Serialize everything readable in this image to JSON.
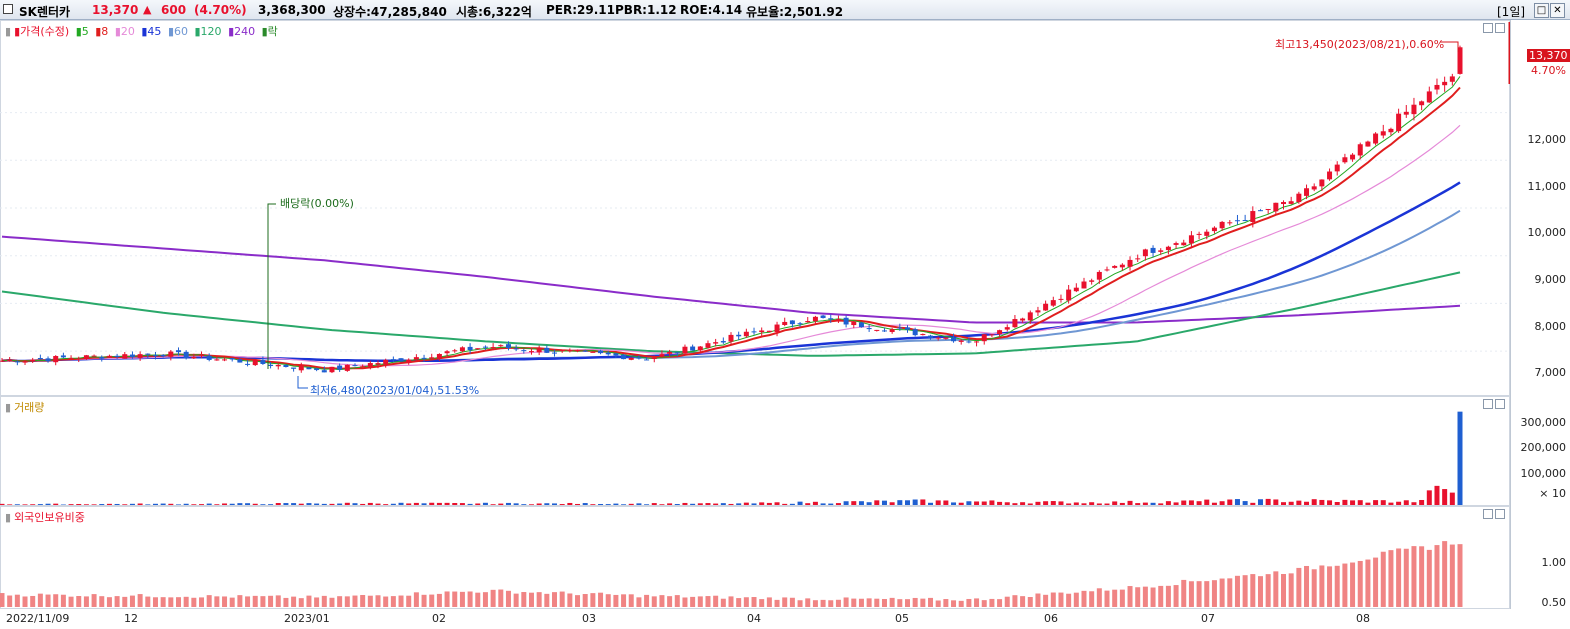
{
  "titlebar": {
    "name": "SK렌터카",
    "price": "13,370",
    "change_arrow": "▲",
    "change": "600",
    "change_pct": "(4.70%)",
    "volume": "3,368,300",
    "shares": "상장수:47,285,840",
    "mktcap": "시총:6,322억",
    "per": "PER:29.11",
    "pbr": "PBR:1.12",
    "roe": "ROE:4.14",
    "float": "유보율:2,501.92",
    "period": "[1일]",
    "btn_max": "□",
    "btn_close": "✕"
  },
  "colors": {
    "up": "#e8112d",
    "down": "#1f5fd1",
    "ma5": "#22a822",
    "ma8": "#e01e1e",
    "ma20": "#e58ad8",
    "ma45": "#1a34d6",
    "ma60": "#6f97d3",
    "ma120": "#2aa86a",
    "ma240": "#8a2cc9",
    "foreign": "#f08484"
  },
  "price_panel": {
    "legend": [
      {
        "text": "가격(수정)",
        "color": "#e8112d"
      },
      {
        "text": "5",
        "color": "#22a822"
      },
      {
        "text": "8",
        "color": "#e01e1e"
      },
      {
        "text": "20",
        "color": "#e58ad8"
      },
      {
        "text": "45",
        "color": "#1a34d6"
      },
      {
        "text": "60",
        "color": "#6f97d3"
      },
      {
        "text": "120",
        "color": "#2aa86a"
      },
      {
        "text": "240",
        "color": "#8a2cc9"
      },
      {
        "text": "락",
        "color": "#2a8a2a"
      }
    ],
    "y_ticks": [
      "12,000",
      "11,000",
      "10,000",
      "9,000",
      "8,000",
      "7,000"
    ],
    "current_price_tag": "13,370",
    "current_pct_tag": "4.70%",
    "annotation_high": "최고13,450(2023/08/21),0.60%",
    "annotation_low": "최저6,480(2023/01/04),51.53%",
    "annotation_dividend": "배당락(0.00%)"
  },
  "volume_panel": {
    "legend": "거래량",
    "y_ticks": [
      "300,000",
      "200,000",
      "100,000",
      "× 10"
    ]
  },
  "foreign_panel": {
    "legend": "외국인보유비중",
    "y_ticks": [
      "1.00",
      "0.50"
    ]
  },
  "x_axis": {
    "labels": [
      "2022/11/09",
      "12",
      "2023/01",
      "02",
      "03",
      "04",
      "05",
      "06",
      "07",
      "08"
    ]
  },
  "chart_data": {
    "type": "line",
    "series": [
      {
        "name": "가격(수정)",
        "x": [
          "2022/11/09",
          "12",
          "2023/01",
          "02",
          "03",
          "04",
          "05",
          "06",
          "07",
          "08"
        ],
        "values": [
          6800,
          6950,
          6600,
          7100,
          6850,
          7700,
          7200,
          9000,
          10200,
          12900
        ]
      },
      {
        "name": "240",
        "x": [
          "2022/11/09",
          "12",
          "2023/01",
          "02",
          "03",
          "04",
          "05",
          "06",
          "07",
          "08"
        ],
        "values": [
          9400,
          9150,
          8900,
          8550,
          8150,
          7800,
          7600,
          7600,
          7750,
          7950
        ]
      },
      {
        "name": "120",
        "x": [
          "2022/11/09",
          "12",
          "2023/01",
          "02",
          "03",
          "04",
          "05",
          "06",
          "07",
          "08"
        ],
        "values": [
          8250,
          7800,
          7450,
          7200,
          7000,
          6900,
          6950,
          7200,
          7900,
          8650
        ]
      },
      {
        "name": "외국인보유비중",
        "x": [
          "2022/11/09",
          "12",
          "2023/01",
          "02",
          "03",
          "04",
          "05",
          "06",
          "07",
          "08"
        ],
        "values": [
          0.62,
          0.6,
          0.58,
          0.67,
          0.6,
          0.56,
          0.55,
          0.72,
          0.95,
          1.35
        ]
      },
      {
        "name": "거래량",
        "x": [
          "2022/11/09",
          "12",
          "2023/01",
          "02",
          "03",
          "04",
          "05",
          "06",
          "07",
          "08"
        ],
        "values": [
          3000,
          4000,
          6000,
          5000,
          5000,
          14000,
          9000,
          16000,
          12000,
          336830
        ]
      }
    ],
    "ylim_price": [
      6100,
      13900
    ],
    "ylim_volume": [
      0,
      350000
    ],
    "ylim_foreign": [
      0.45,
      1.7
    ],
    "high": 13450,
    "low": 6480,
    "last": 13370
  }
}
